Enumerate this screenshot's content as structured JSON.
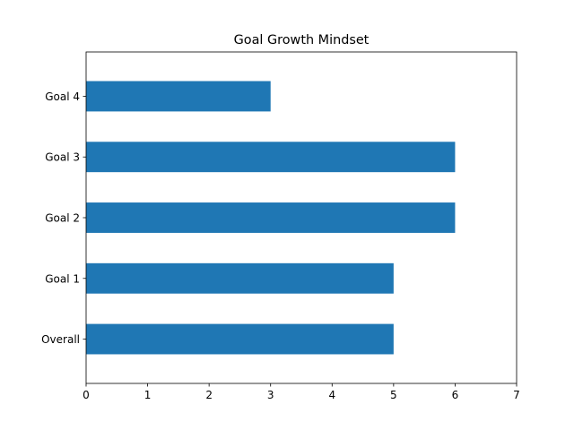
{
  "chart_data": {
    "type": "bar",
    "orientation": "horizontal",
    "title": "Goal Growth Mindset",
    "xlabel": "",
    "ylabel": "",
    "categories": [
      "Overall",
      "Goal 1",
      "Goal 2",
      "Goal 3",
      "Goal 4"
    ],
    "values": [
      5,
      5,
      6,
      6,
      3
    ],
    "xlim": [
      0,
      7
    ],
    "xticks": [
      0,
      1,
      2,
      3,
      4,
      5,
      6,
      7
    ],
    "grid": false,
    "bar_color": "#1f77b4"
  }
}
